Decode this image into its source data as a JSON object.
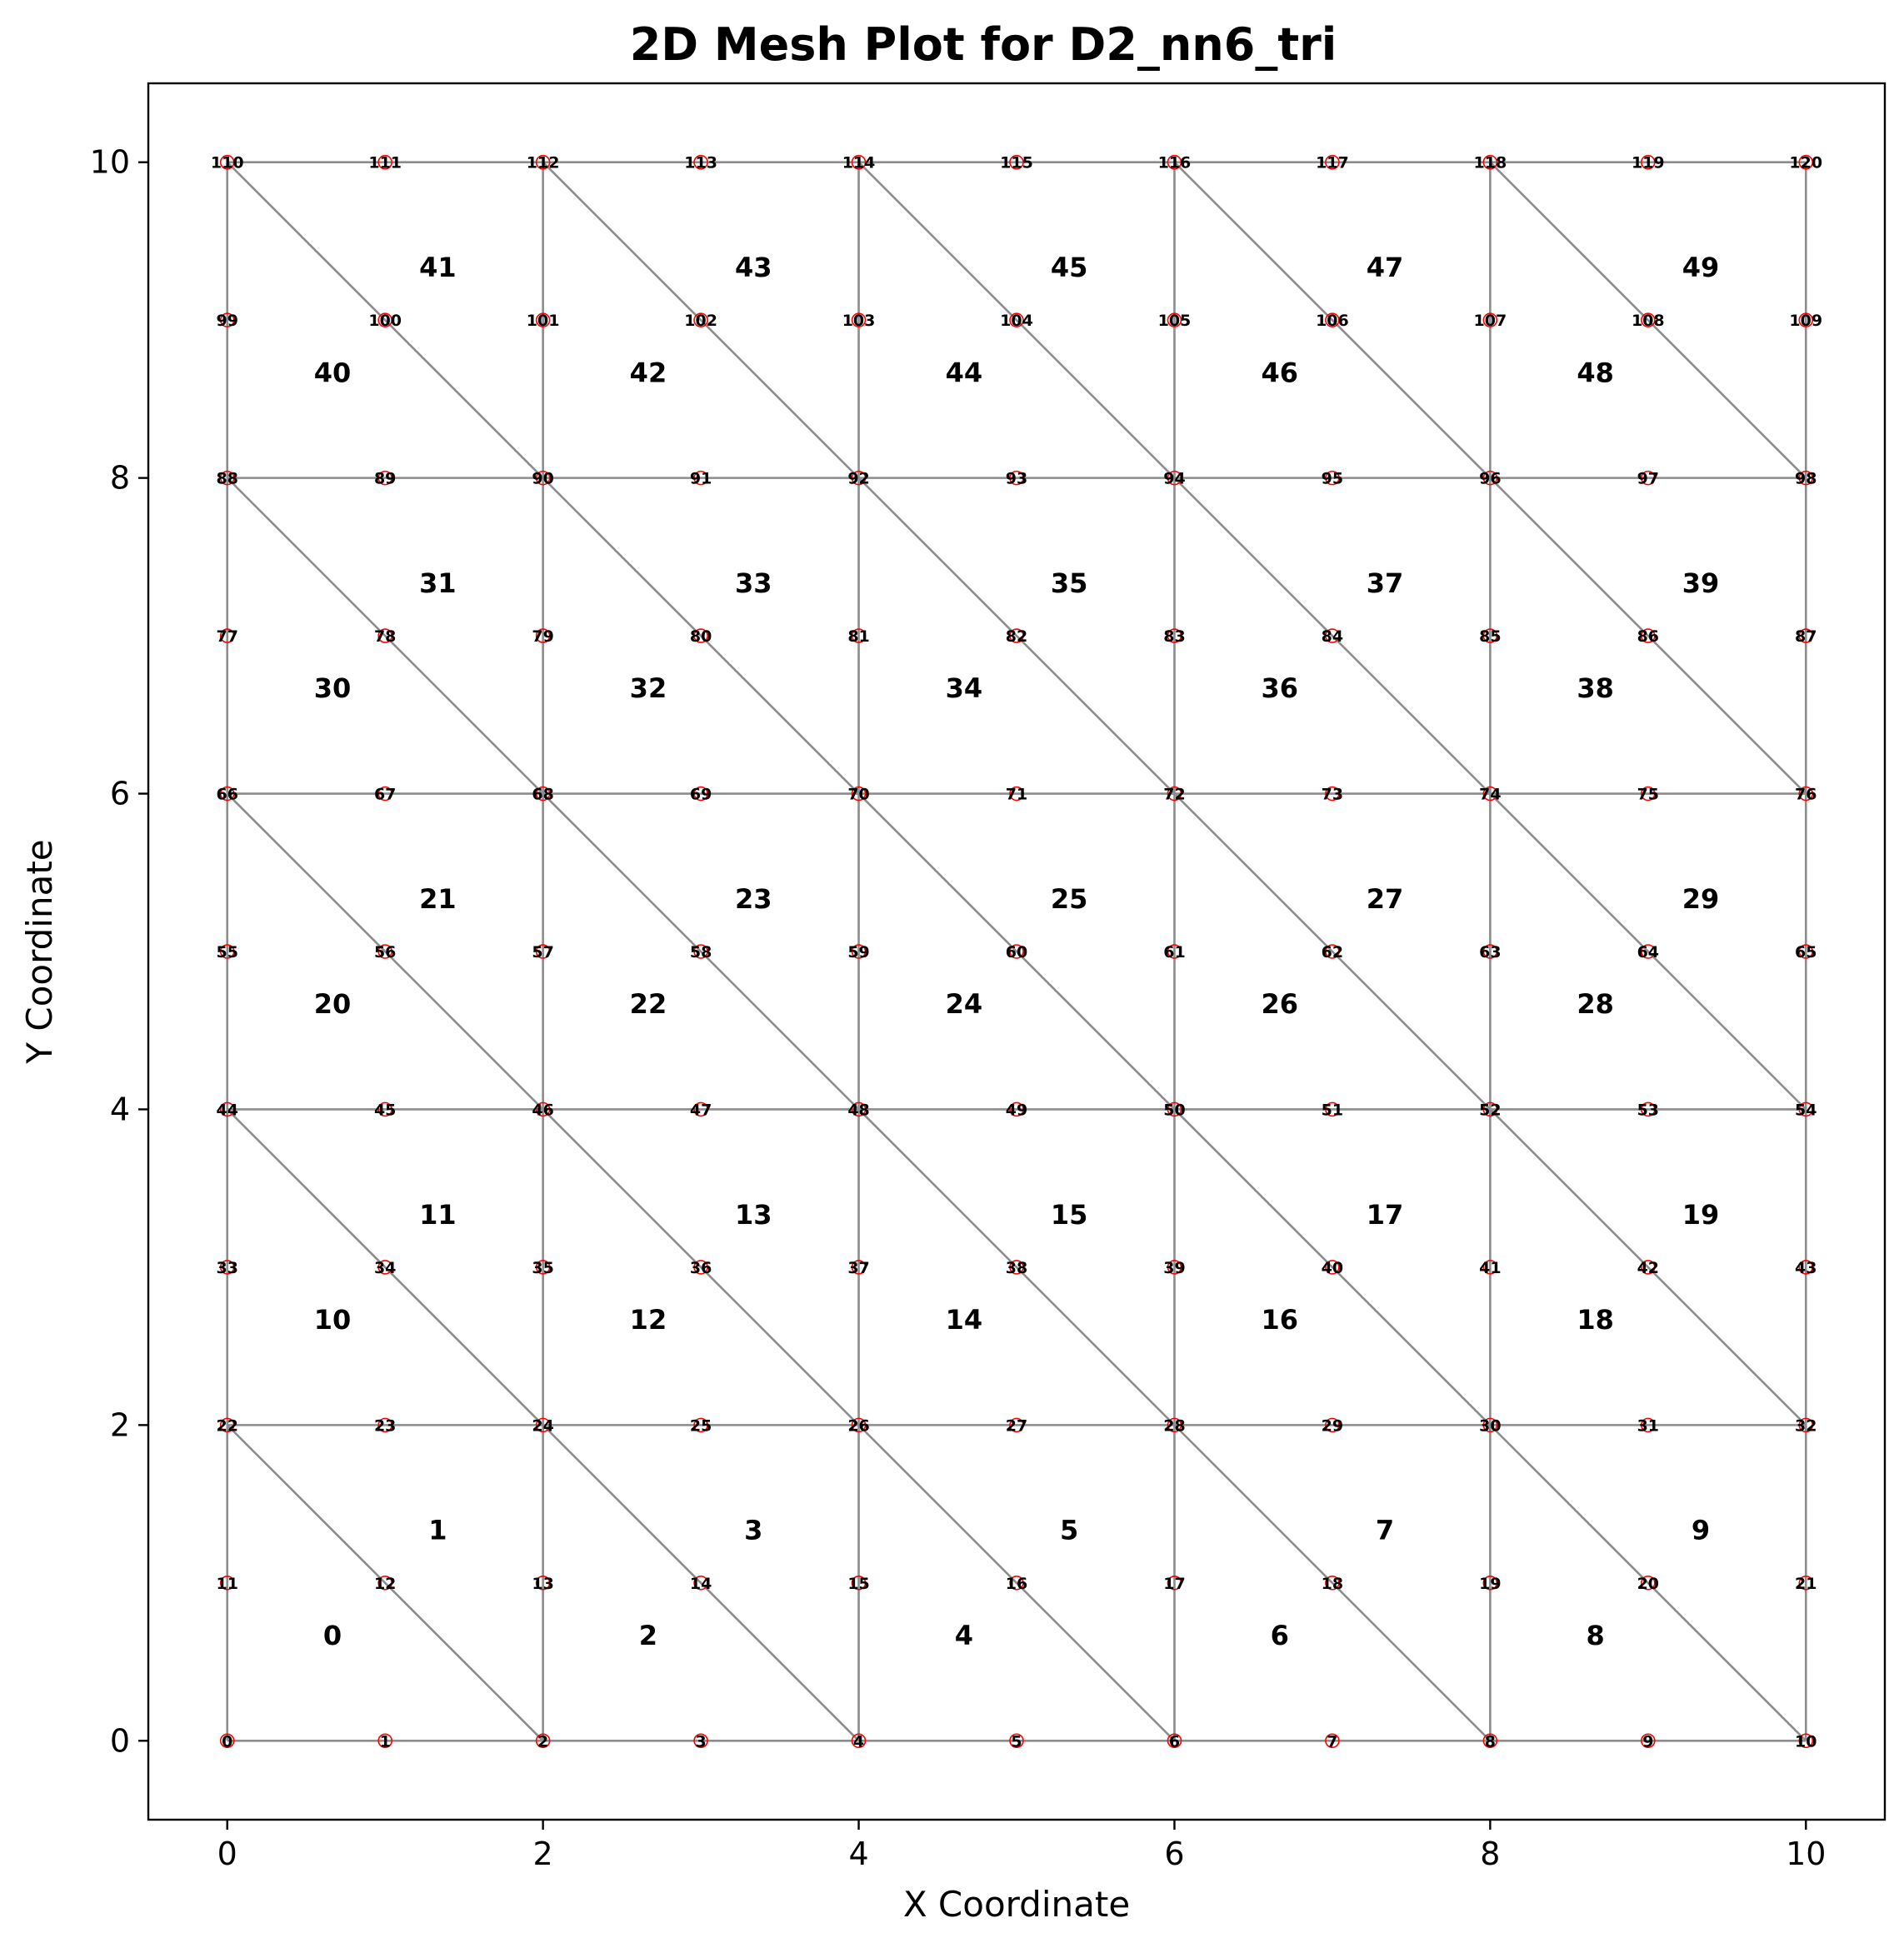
{
  "chart_data": {
    "type": "mesh",
    "title": "2D Mesh Plot for D2_nn6_tri",
    "xlabel": "X Coordinate",
    "ylabel": "Y Coordinate",
    "xlim": [
      -0.5,
      10.5
    ],
    "ylim": [
      -0.5,
      10.5
    ],
    "xticks": [
      0,
      2,
      4,
      6,
      8,
      10
    ],
    "yticks": [
      0,
      2,
      4,
      6,
      8,
      10
    ],
    "grid": false,
    "nodes": {
      "x": [
        0,
        1,
        2,
        3,
        4,
        5,
        6,
        7,
        8,
        9,
        10
      ],
      "y": [
        0,
        1,
        2,
        3,
        4,
        5,
        6,
        7,
        8,
        9,
        10
      ],
      "numbering": "row-major from bottom-left, 11 nodes per row",
      "count": 121
    },
    "elements": {
      "type": "6-node triangle",
      "cell_size": 2,
      "cells_per_row": 5,
      "rows": 5,
      "diagonal": "from top-left to bottom-right of each cell",
      "numbering": "per cell: lower triangle 2k, upper triangle 2k+1, cells row-major from bottom-left",
      "count": 50
    },
    "colors": {
      "edge": "#8c8c8c",
      "node_marker": "#ff0000",
      "text": "#000000"
    }
  }
}
